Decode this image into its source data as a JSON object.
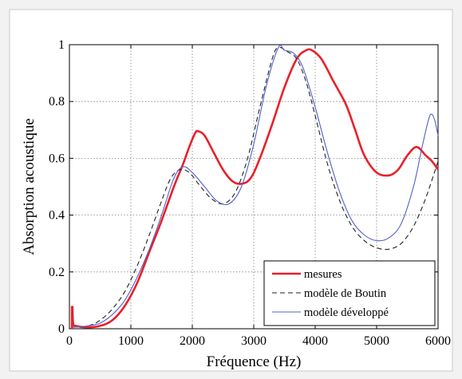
{
  "chart_data": {
    "type": "line",
    "title": "",
    "xlabel": "Fréquence (Hz)",
    "ylabel": "Absorption acoustique",
    "xlim": [
      0,
      6000
    ],
    "ylim": [
      0,
      1
    ],
    "xticks": [
      0,
      1000,
      2000,
      3000,
      4000,
      5000,
      6000
    ],
    "yticks": [
      0,
      0.2,
      0.4,
      0.6,
      0.8,
      1
    ],
    "xtick_labels": [
      "0",
      "1000",
      "2000",
      "3000",
      "4000",
      "5000",
      "6000"
    ],
    "ytick_labels": [
      "0",
      "0.2",
      "0.4",
      "0.6",
      "0.8",
      "1"
    ],
    "grid": true,
    "legend_position": "bottom-right",
    "series": [
      {
        "name": "mesures",
        "color": "#e8202a",
        "dash": "solid",
        "points": [
          [
            50,
            0.08
          ],
          [
            60,
            0.02
          ],
          [
            100,
            0.01
          ],
          [
            300,
            0.005
          ],
          [
            500,
            0.01
          ],
          [
            700,
            0.03
          ],
          [
            900,
            0.08
          ],
          [
            1100,
            0.16
          ],
          [
            1300,
            0.27
          ],
          [
            1500,
            0.38
          ],
          [
            1700,
            0.5
          ],
          [
            1850,
            0.58
          ],
          [
            1950,
            0.64
          ],
          [
            2050,
            0.69
          ],
          [
            2100,
            0.695
          ],
          [
            2200,
            0.68
          ],
          [
            2350,
            0.62
          ],
          [
            2500,
            0.56
          ],
          [
            2650,
            0.52
          ],
          [
            2800,
            0.51
          ],
          [
            2950,
            0.53
          ],
          [
            3100,
            0.6
          ],
          [
            3300,
            0.72
          ],
          [
            3500,
            0.85
          ],
          [
            3700,
            0.95
          ],
          [
            3850,
            0.98
          ],
          [
            3950,
            0.98
          ],
          [
            4100,
            0.95
          ],
          [
            4300,
            0.87
          ],
          [
            4500,
            0.79
          ],
          [
            4650,
            0.7
          ],
          [
            4800,
            0.61
          ],
          [
            5000,
            0.55
          ],
          [
            5200,
            0.54
          ],
          [
            5350,
            0.56
          ],
          [
            5500,
            0.61
          ],
          [
            5650,
            0.64
          ],
          [
            5800,
            0.61
          ],
          [
            5900,
            0.59
          ],
          [
            6000,
            0.56
          ]
        ]
      },
      {
        "name": "modèle de Boutin",
        "color": "#222222",
        "dash": "dashed",
        "points": [
          [
            50,
            0.005
          ],
          [
            300,
            0.01
          ],
          [
            500,
            0.03
          ],
          [
            700,
            0.07
          ],
          [
            900,
            0.13
          ],
          [
            1100,
            0.22
          ],
          [
            1300,
            0.33
          ],
          [
            1500,
            0.45
          ],
          [
            1650,
            0.53
          ],
          [
            1800,
            0.56
          ],
          [
            1950,
            0.55
          ],
          [
            2100,
            0.51
          ],
          [
            2300,
            0.46
          ],
          [
            2500,
            0.44
          ],
          [
            2700,
            0.48
          ],
          [
            2900,
            0.6
          ],
          [
            3100,
            0.78
          ],
          [
            3300,
            0.95
          ],
          [
            3400,
            0.99
          ],
          [
            3550,
            0.975
          ],
          [
            3700,
            0.95
          ],
          [
            3850,
            0.87
          ],
          [
            4000,
            0.75
          ],
          [
            4200,
            0.58
          ],
          [
            4400,
            0.45
          ],
          [
            4600,
            0.36
          ],
          [
            4800,
            0.31
          ],
          [
            5000,
            0.285
          ],
          [
            5200,
            0.28
          ],
          [
            5400,
            0.3
          ],
          [
            5600,
            0.36
          ],
          [
            5800,
            0.46
          ],
          [
            6000,
            0.59
          ]
        ]
      },
      {
        "name": "modèle développé",
        "color": "#5560c8",
        "dash": "solid",
        "points": [
          [
            50,
            0.005
          ],
          [
            300,
            0.01
          ],
          [
            500,
            0.02
          ],
          [
            700,
            0.05
          ],
          [
            900,
            0.1
          ],
          [
            1100,
            0.18
          ],
          [
            1300,
            0.28
          ],
          [
            1500,
            0.4
          ],
          [
            1700,
            0.53
          ],
          [
            1850,
            0.57
          ],
          [
            2000,
            0.55
          ],
          [
            2200,
            0.5
          ],
          [
            2400,
            0.45
          ],
          [
            2600,
            0.44
          ],
          [
            2800,
            0.5
          ],
          [
            3000,
            0.65
          ],
          [
            3200,
            0.85
          ],
          [
            3400,
            0.99
          ],
          [
            3500,
            0.98
          ],
          [
            3650,
            0.97
          ],
          [
            3800,
            0.92
          ],
          [
            4000,
            0.78
          ],
          [
            4200,
            0.62
          ],
          [
            4400,
            0.48
          ],
          [
            4600,
            0.38
          ],
          [
            4800,
            0.33
          ],
          [
            5000,
            0.31
          ],
          [
            5200,
            0.32
          ],
          [
            5400,
            0.37
          ],
          [
            5600,
            0.5
          ],
          [
            5750,
            0.65
          ],
          [
            5850,
            0.74
          ],
          [
            5900,
            0.755
          ],
          [
            5950,
            0.73
          ],
          [
            6000,
            0.68
          ]
        ]
      }
    ]
  }
}
